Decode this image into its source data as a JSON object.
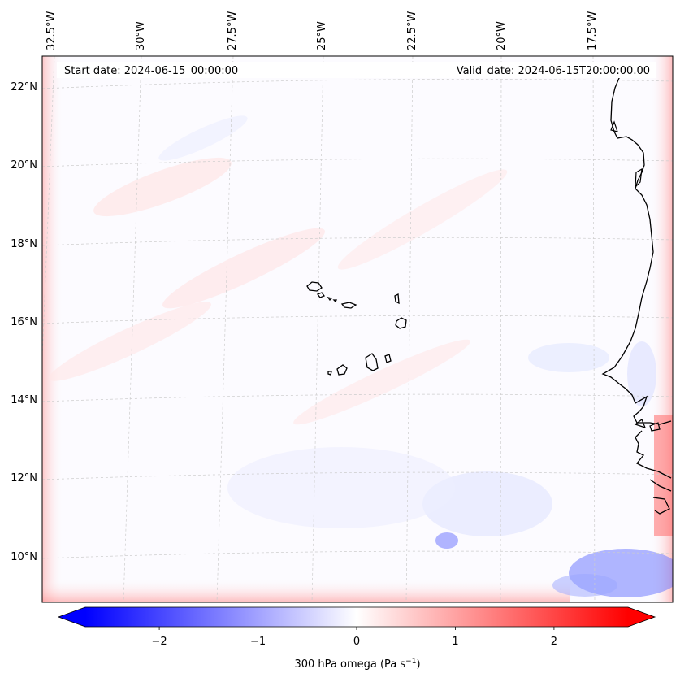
{
  "header": {
    "start_date": "Start date: 2024-06-15_00:00:00",
    "valid_date": "Valid_date: 2024-06-15T20:00:00.00"
  },
  "lon_labels": [
    "32.5°W",
    "30°W",
    "27.5°W",
    "25°W",
    "22.5°W",
    "20°W",
    "17.5°W"
  ],
  "lat_labels": [
    "22°N",
    "20°N",
    "18°N",
    "16°N",
    "14°N",
    "12°N",
    "10°N"
  ],
  "colorbar": {
    "label": "300 hPa omega (Pa s",
    "label_sup": "−1",
    "label_close": ")",
    "ticks": [
      "−2",
      "−1",
      "0",
      "1",
      "2"
    ],
    "tick_values": [
      -2,
      -1,
      0,
      1,
      2
    ],
    "vmin": -2.75,
    "vmax": 2.75,
    "colors": {
      "low": "#0000ff",
      "mid": "#ffffff",
      "high": "#ff0000"
    }
  },
  "colors": {
    "coast": "#000000",
    "grid": "#cccccc"
  }
}
